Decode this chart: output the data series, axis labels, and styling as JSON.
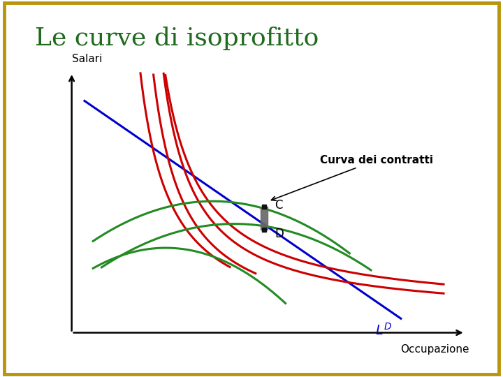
{
  "title": "Le curve di isoprofitto",
  "title_color": "#1e6b1e",
  "title_fontsize": 26,
  "xlabel": "Occupazione",
  "ylabel": "Salari",
  "background_color": "#ffffff",
  "border_color": "#b8960c",
  "ld_label": "L",
  "ld_sup": "D",
  "ld_color": "#0000cc",
  "isoprofit_color": "#cc0000",
  "contract_color": "#228B22",
  "point_C": [
    0.5,
    0.495
  ],
  "point_D": [
    0.5,
    0.415
  ],
  "label_C": "C",
  "label_D": "D",
  "curva_label": "Curva dei contratti",
  "axis_color": "#000000",
  "label_fontsize": 11,
  "annotation_fontsize": 11
}
